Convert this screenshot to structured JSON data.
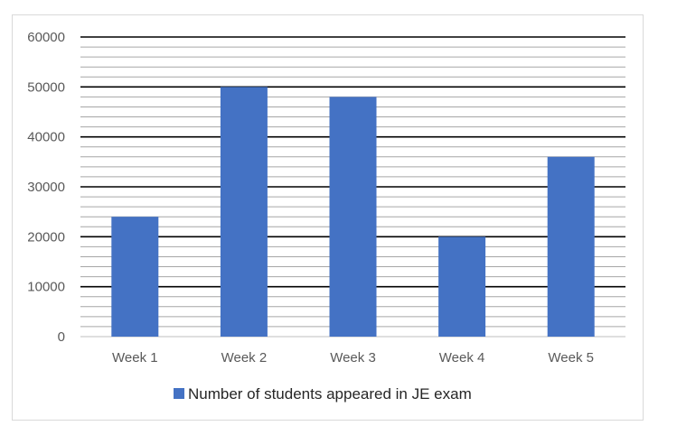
{
  "chart_data": {
    "type": "bar",
    "categories": [
      "Week 1",
      "Week 2",
      "Week 3",
      "Week 4",
      "Week 5"
    ],
    "series": [
      {
        "name": "Number of students appeared in JE exam",
        "values": [
          24000,
          50000,
          48000,
          20000,
          36000
        ],
        "color": "#4472c4"
      }
    ],
    "title": "",
    "xlabel": "",
    "ylabel": "",
    "ylim": [
      0,
      60000
    ],
    "yticks": [
      "0",
      "10000",
      "20000",
      "30000",
      "40000",
      "50000",
      "60000"
    ],
    "grid": true,
    "legend_position": "bottom"
  }
}
